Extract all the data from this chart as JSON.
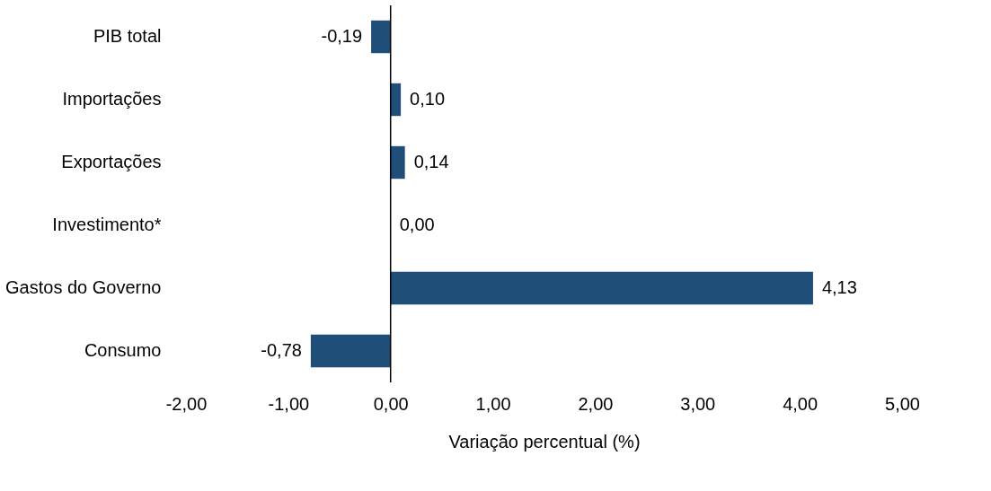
{
  "chart_data": {
    "type": "bar",
    "orientation": "horizontal",
    "categories": [
      "PIB total",
      "Importações",
      "Exportações",
      "Investimento*",
      "Gastos do Governo",
      "Consumo"
    ],
    "values": [
      -0.19,
      0.1,
      0.14,
      0.0,
      4.13,
      -0.78
    ],
    "value_labels": [
      "-0,19",
      "0,10",
      "0,14",
      "0,00",
      "4,13",
      "-0,78"
    ],
    "color": "#1f4e79",
    "xlabel": "Variação percentual (%)",
    "xlim": [
      -2,
      5
    ],
    "xticks": [
      {
        "value": -2,
        "label": "-2,00"
      },
      {
        "value": -1,
        "label": "-1,00"
      },
      {
        "value": 0,
        "label": "0,00"
      },
      {
        "value": 1,
        "label": "1,00"
      },
      {
        "value": 2,
        "label": "2,00"
      },
      {
        "value": 3,
        "label": "3,00"
      },
      {
        "value": 4,
        "label": "4,00"
      },
      {
        "value": 5,
        "label": "5,00"
      }
    ],
    "ref_lines": [
      {
        "axis": "x",
        "value": 0,
        "color": "#000000"
      }
    ],
    "grid": false
  }
}
